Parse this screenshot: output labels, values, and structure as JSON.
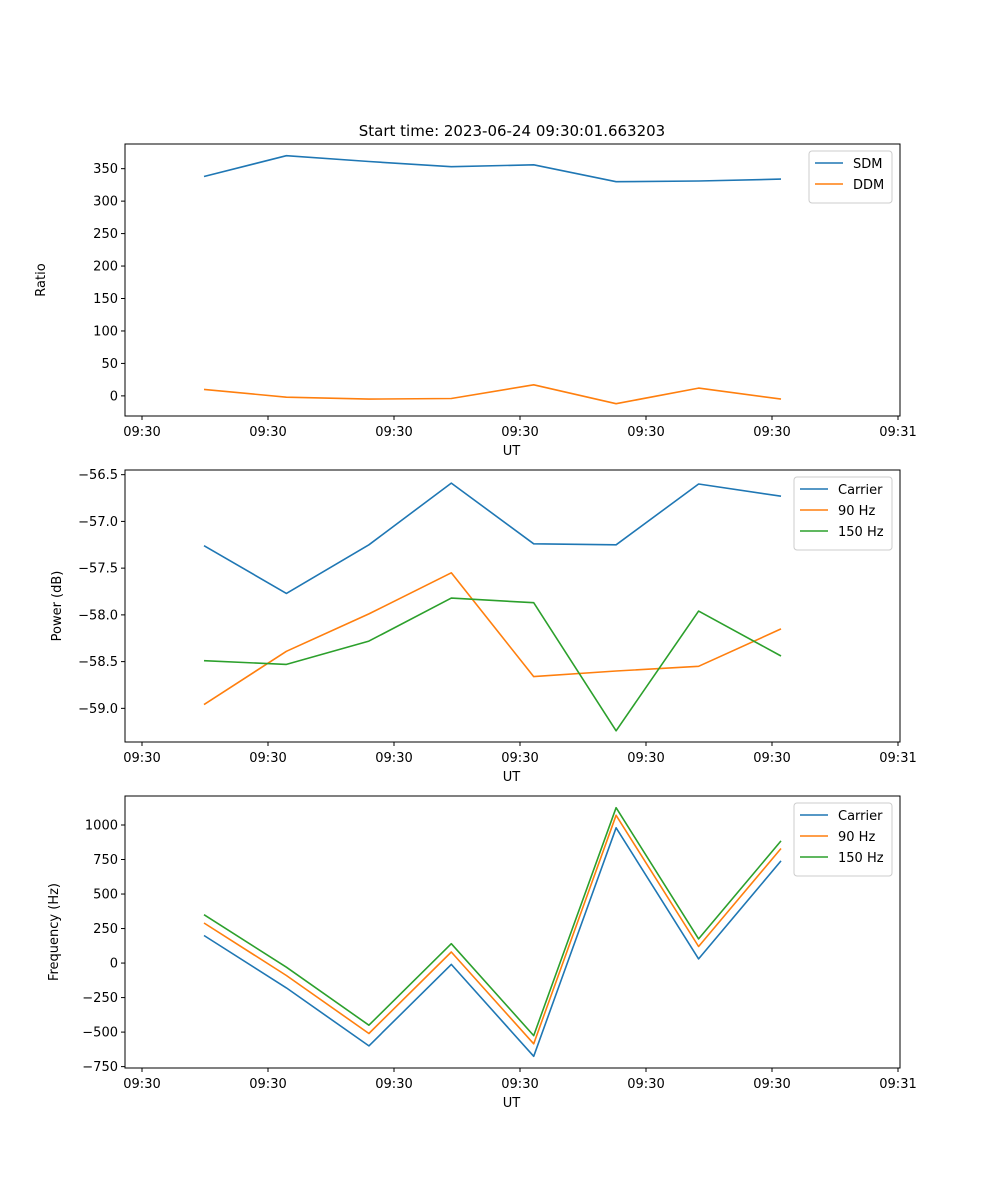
{
  "title": "Start time: 2023-06-24 09:30:01.663203",
  "chart_data": [
    {
      "type": "line",
      "title": "Start time: 2023-06-24 09:30:01.663203",
      "xlabel": "UT",
      "ylabel": "Ratio",
      "x_tick_labels": [
        "09:30",
        "09:30",
        "09:30",
        "09:30",
        "09:30",
        "09:30",
        "09:30",
        "09:31"
      ],
      "x": [
        1,
        2,
        3,
        4,
        5,
        6,
        7,
        8
      ],
      "xlim": [
        0.2,
        9.4
      ],
      "ylim": [
        -31,
        388
      ],
      "y_ticks": [
        0,
        50,
        100,
        150,
        200,
        250,
        300,
        350
      ],
      "legend": "top-right",
      "series": [
        {
          "name": "SDM",
          "color": "#1f77b4",
          "values": [
            338,
            370,
            361,
            353,
            356,
            330,
            331,
            334
          ]
        },
        {
          "name": "DDM",
          "color": "#ff7f0e",
          "values": [
            10,
            -2,
            -5,
            -4,
            17,
            -12,
            12,
            -5
          ]
        }
      ]
    },
    {
      "type": "line",
      "xlabel": "UT",
      "ylabel": "Power (dB)",
      "x_tick_labels": [
        "09:30",
        "09:30",
        "09:30",
        "09:30",
        "09:30",
        "09:30",
        "09:30",
        "09:31"
      ],
      "x": [
        1,
        2,
        3,
        4,
        5,
        6,
        7,
        8
      ],
      "xlim": [
        0.2,
        9.4
      ],
      "ylim": [
        -59.36,
        -56.45
      ],
      "y_ticks": [
        -59.0,
        -58.5,
        -58.0,
        -57.5,
        -57.0,
        -56.5
      ],
      "y_tick_labels": [
        "−59.0",
        "−58.5",
        "−58.0",
        "−57.5",
        "−57.0",
        "−56.5"
      ],
      "legend": "top-right",
      "series": [
        {
          "name": "Carrier",
          "color": "#1f77b4",
          "values": [
            -57.26,
            -57.77,
            -57.25,
            -56.59,
            -57.24,
            -57.25,
            -56.6,
            -56.73
          ]
        },
        {
          "name": "90 Hz",
          "color": "#ff7f0e",
          "values": [
            -58.96,
            -58.39,
            -57.99,
            -57.55,
            -58.66,
            -58.6,
            -58.55,
            -58.15
          ]
        },
        {
          "name": "150 Hz",
          "color": "#2ca02c",
          "values": [
            -58.49,
            -58.53,
            -58.28,
            -57.82,
            -57.87,
            -59.24,
            -57.96,
            -58.44
          ]
        }
      ]
    },
    {
      "type": "line",
      "xlabel": "UT",
      "ylabel": "Frequency (Hz)",
      "x_tick_labels": [
        "09:30",
        "09:30",
        "09:30",
        "09:30",
        "09:30",
        "09:30",
        "09:30",
        "09:31"
      ],
      "x": [
        1,
        2,
        3,
        4,
        5,
        6,
        7,
        8
      ],
      "xlim": [
        0.2,
        9.4
      ],
      "ylim": [
        -760,
        1210
      ],
      "y_ticks": [
        -750,
        -500,
        -250,
        0,
        250,
        500,
        750,
        1000
      ],
      "y_tick_labels": [
        "−750",
        "−500",
        "−250",
        "0",
        "250",
        "500",
        "750",
        "1000"
      ],
      "legend": "top-right",
      "series": [
        {
          "name": "Carrier",
          "color": "#1f77b4",
          "values": [
            200,
            -180,
            -600,
            -10,
            -675,
            980,
            30,
            740
          ]
        },
        {
          "name": "90 Hz",
          "color": "#ff7f0e",
          "values": [
            290,
            -90,
            -510,
            80,
            -585,
            1070,
            120,
            830
          ]
        },
        {
          "name": "150 Hz",
          "color": "#2ca02c",
          "values": [
            350,
            -30,
            -450,
            140,
            -525,
            1125,
            175,
            885
          ]
        }
      ]
    }
  ]
}
